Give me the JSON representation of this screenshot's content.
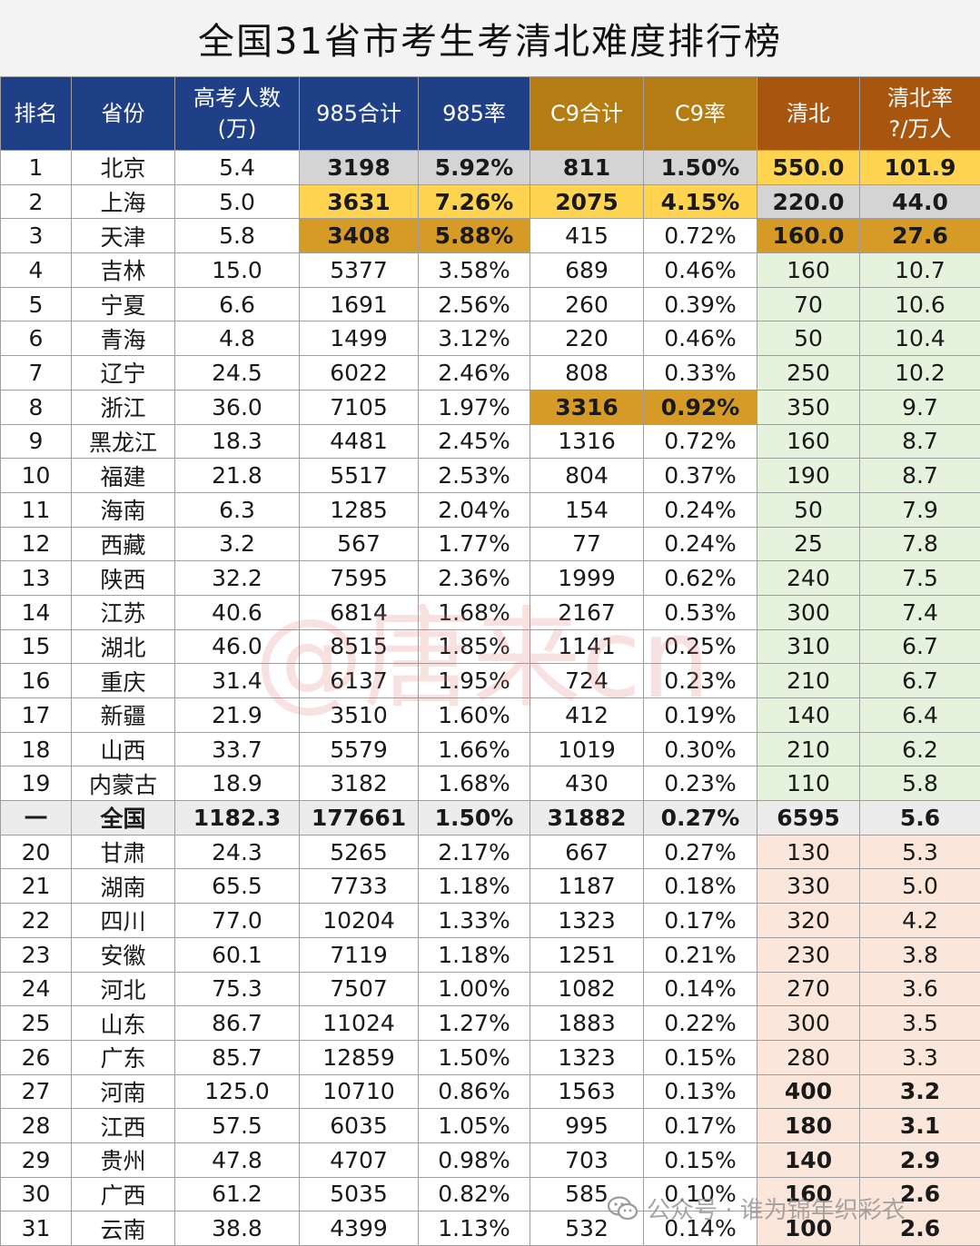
{
  "title": "全国31省市考生考清北难度排行榜",
  "headers": [
    {
      "label": "排名",
      "style": "blue"
    },
    {
      "label": "省份",
      "style": "blue"
    },
    {
      "label": "高考人数",
      "sub": "(万)",
      "style": "blue"
    },
    {
      "label": "985合计",
      "style": "blue"
    },
    {
      "label": "985率",
      "style": "blue"
    },
    {
      "label": "C9合计",
      "style": "gold"
    },
    {
      "label": "C9率",
      "style": "gold"
    },
    {
      "label": "清北",
      "style": "brown"
    },
    {
      "label": "清北率",
      "sub": "?/万人",
      "style": "brown"
    }
  ],
  "rows": [
    {
      "rank": "1",
      "province": "北京",
      "exam": "5.4",
      "t985": "3198",
      "r985": "5.92%",
      "c9": "811",
      "rc9": "1.50%",
      "qb": "550.0",
      "rqb": "101.9",
      "hl": [
        "s",
        "s",
        "s",
        "s",
        "y",
        "y"
      ]
    },
    {
      "rank": "2",
      "province": "上海",
      "exam": "5.0",
      "t985": "3631",
      "r985": "7.26%",
      "c9": "2075",
      "rc9": "4.15%",
      "qb": "220.0",
      "rqb": "44.0",
      "hl": [
        "y",
        "y",
        "y",
        "y",
        "s",
        "s"
      ]
    },
    {
      "rank": "3",
      "province": "天津",
      "exam": "5.8",
      "t985": "3408",
      "r985": "5.88%",
      "c9": "415",
      "rc9": "0.72%",
      "qb": "160.0",
      "rqb": "27.6",
      "hl": [
        "b",
        "b",
        "",
        "",
        "b",
        "b"
      ]
    },
    {
      "rank": "4",
      "province": "吉林",
      "exam": "15.0",
      "t985": "5377",
      "r985": "3.58%",
      "c9": "689",
      "rc9": "0.46%",
      "qb": "160",
      "rqb": "10.7",
      "zone": "g"
    },
    {
      "rank": "5",
      "province": "宁夏",
      "exam": "6.6",
      "t985": "1691",
      "r985": "2.56%",
      "c9": "260",
      "rc9": "0.39%",
      "qb": "70",
      "rqb": "10.6",
      "zone": "g"
    },
    {
      "rank": "6",
      "province": "青海",
      "exam": "4.8",
      "t985": "1499",
      "r985": "3.12%",
      "c9": "220",
      "rc9": "0.46%",
      "qb": "50",
      "rqb": "10.4",
      "zone": "g"
    },
    {
      "rank": "7",
      "province": "辽宁",
      "exam": "24.5",
      "t985": "6022",
      "r985": "2.46%",
      "c9": "808",
      "rc9": "0.33%",
      "qb": "250",
      "rqb": "10.2",
      "zone": "g"
    },
    {
      "rank": "8",
      "province": "浙江",
      "exam": "36.0",
      "t985": "7105",
      "r985": "1.97%",
      "c9": "3316",
      "rc9": "0.92%",
      "qb": "350",
      "rqb": "9.7",
      "zone": "g",
      "hl": [
        "",
        "",
        "b",
        "b",
        "",
        ""
      ]
    },
    {
      "rank": "9",
      "province": "黑龙江",
      "exam": "18.3",
      "t985": "4481",
      "r985": "2.45%",
      "c9": "1316",
      "rc9": "0.72%",
      "qb": "160",
      "rqb": "8.7",
      "zone": "g"
    },
    {
      "rank": "10",
      "province": "福建",
      "exam": "21.8",
      "t985": "5517",
      "r985": "2.53%",
      "c9": "804",
      "rc9": "0.37%",
      "qb": "190",
      "rqb": "8.7",
      "zone": "g"
    },
    {
      "rank": "11",
      "province": "海南",
      "exam": "6.3",
      "t985": "1285",
      "r985": "2.04%",
      "c9": "154",
      "rc9": "0.24%",
      "qb": "50",
      "rqb": "7.9",
      "zone": "g"
    },
    {
      "rank": "12",
      "province": "西藏",
      "exam": "3.2",
      "t985": "567",
      "r985": "1.77%",
      "c9": "77",
      "rc9": "0.24%",
      "qb": "25",
      "rqb": "7.8",
      "zone": "g"
    },
    {
      "rank": "13",
      "province": "陕西",
      "exam": "32.2",
      "t985": "7595",
      "r985": "2.36%",
      "c9": "1999",
      "rc9": "0.62%",
      "qb": "240",
      "rqb": "7.5",
      "zone": "g"
    },
    {
      "rank": "14",
      "province": "江苏",
      "exam": "40.6",
      "t985": "6814",
      "r985": "1.68%",
      "c9": "2167",
      "rc9": "0.53%",
      "qb": "300",
      "rqb": "7.4",
      "zone": "g"
    },
    {
      "rank": "15",
      "province": "湖北",
      "exam": "46.0",
      "t985": "8515",
      "r985": "1.85%",
      "c9": "1141",
      "rc9": "0.25%",
      "qb": "310",
      "rqb": "6.7",
      "zone": "g"
    },
    {
      "rank": "16",
      "province": "重庆",
      "exam": "31.4",
      "t985": "6137",
      "r985": "1.95%",
      "c9": "724",
      "rc9": "0.23%",
      "qb": "210",
      "rqb": "6.7",
      "zone": "g"
    },
    {
      "rank": "17",
      "province": "新疆",
      "exam": "21.9",
      "t985": "3510",
      "r985": "1.60%",
      "c9": "412",
      "rc9": "0.19%",
      "qb": "140",
      "rqb": "6.4",
      "zone": "g"
    },
    {
      "rank": "18",
      "province": "山西",
      "exam": "33.7",
      "t985": "5579",
      "r985": "1.66%",
      "c9": "1019",
      "rc9": "0.30%",
      "qb": "210",
      "rqb": "6.2",
      "zone": "g"
    },
    {
      "rank": "19",
      "province": "内蒙古",
      "exam": "18.9",
      "t985": "3182",
      "r985": "1.68%",
      "c9": "430",
      "rc9": "0.23%",
      "qb": "110",
      "rqb": "5.8",
      "zone": "g"
    },
    {
      "rank": "一",
      "province": "全国",
      "exam": "1182.3",
      "t985": "177661",
      "r985": "1.50%",
      "c9": "31882",
      "rc9": "0.27%",
      "qb": "6595",
      "rqb": "5.6",
      "total": true
    },
    {
      "rank": "20",
      "province": "甘肃",
      "exam": "24.3",
      "t985": "5265",
      "r985": "2.17%",
      "c9": "667",
      "rc9": "0.27%",
      "qb": "130",
      "rqb": "5.3",
      "zone": "p"
    },
    {
      "rank": "21",
      "province": "湖南",
      "exam": "65.5",
      "t985": "7733",
      "r985": "1.18%",
      "c9": "1187",
      "rc9": "0.18%",
      "qb": "330",
      "rqb": "5.0",
      "zone": "p"
    },
    {
      "rank": "22",
      "province": "四川",
      "exam": "77.0",
      "t985": "10204",
      "r985": "1.33%",
      "c9": "1323",
      "rc9": "0.17%",
      "qb": "320",
      "rqb": "4.2",
      "zone": "p"
    },
    {
      "rank": "23",
      "province": "安徽",
      "exam": "60.1",
      "t985": "7119",
      "r985": "1.18%",
      "c9": "1251",
      "rc9": "0.21%",
      "qb": "230",
      "rqb": "3.8",
      "zone": "p"
    },
    {
      "rank": "24",
      "province": "河北",
      "exam": "75.3",
      "t985": "7507",
      "r985": "1.00%",
      "c9": "1082",
      "rc9": "0.14%",
      "qb": "270",
      "rqb": "3.6",
      "zone": "p"
    },
    {
      "rank": "25",
      "province": "山东",
      "exam": "86.7",
      "t985": "11024",
      "r985": "1.27%",
      "c9": "1883",
      "rc9": "0.22%",
      "qb": "300",
      "rqb": "3.5",
      "zone": "p"
    },
    {
      "rank": "26",
      "province": "广东",
      "exam": "85.7",
      "t985": "12859",
      "r985": "1.50%",
      "c9": "1323",
      "rc9": "0.15%",
      "qb": "280",
      "rqb": "3.3",
      "zone": "p"
    },
    {
      "rank": "27",
      "province": "河南",
      "exam": "125.0",
      "t985": "10710",
      "r985": "0.86%",
      "c9": "1563",
      "rc9": "0.13%",
      "qb": "400",
      "rqb": "3.2",
      "zone": "p",
      "red": true
    },
    {
      "rank": "28",
      "province": "江西",
      "exam": "57.5",
      "t985": "6035",
      "r985": "1.05%",
      "c9": "995",
      "rc9": "0.17%",
      "qb": "180",
      "rqb": "3.1",
      "zone": "p",
      "red": true
    },
    {
      "rank": "29",
      "province": "贵州",
      "exam": "47.8",
      "t985": "4707",
      "r985": "0.98%",
      "c9": "703",
      "rc9": "0.15%",
      "qb": "140",
      "rqb": "2.9",
      "zone": "p",
      "red": true
    },
    {
      "rank": "30",
      "province": "广西",
      "exam": "61.2",
      "t985": "5035",
      "r985": "0.82%",
      "c9": "585",
      "rc9": "0.10%",
      "qb": "160",
      "rqb": "2.6",
      "zone": "p",
      "red": true
    },
    {
      "rank": "31",
      "province": "云南",
      "exam": "38.8",
      "t985": "4399",
      "r985": "1.13%",
      "c9": "532",
      "rc9": "0.14%",
      "qb": "100",
      "rqb": "2.6",
      "zone": "p",
      "red": true
    }
  ],
  "watermark": "@唐来cn",
  "footer_watermark": "公众号 · 谁为锦年织彩衣",
  "colors": {
    "header_blue": "#1f3f87",
    "header_gold": "#b47c12",
    "header_brown": "#a8560f",
    "silver": "#d4d4d4",
    "yellow": "#ffd451",
    "bronze": "#d69a27",
    "green_zone": "#e4f2de",
    "pink_zone": "#fbe6db",
    "red_text": "#cc1616"
  }
}
